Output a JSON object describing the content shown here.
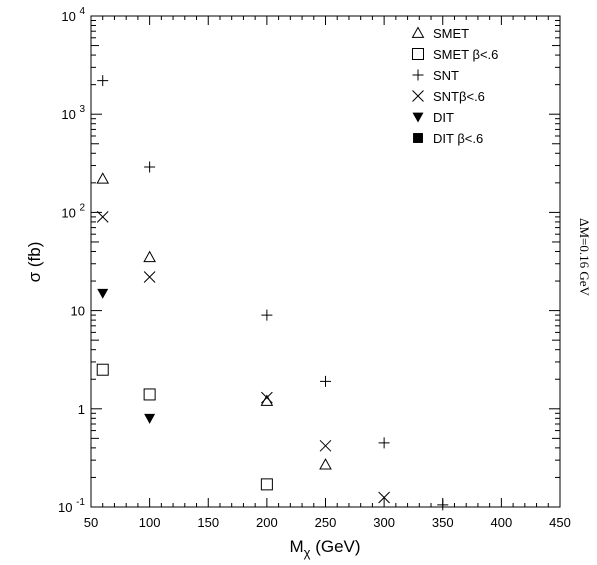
{
  "chart_data": {
    "type": "scatter",
    "title": "",
    "xlabel": "M",
    "xlabel_sub": "χ",
    "xlabel_unit": " (GeV)",
    "ylabel": "σ (fb)",
    "side_annotation": "ΔM=0.16 GeV",
    "xlim": [
      50,
      450
    ],
    "ylim": [
      0.1,
      10000
    ],
    "yscale": "log",
    "x_ticks": [
      50,
      100,
      150,
      200,
      250,
      300,
      350,
      400,
      450
    ],
    "x_tick_labels": [
      "50",
      "100",
      "150",
      "200",
      "250",
      "300",
      "350",
      "400",
      "450"
    ],
    "y_ticks": [
      {
        "value": 10000,
        "base": "10",
        "exp": "4"
      },
      {
        "value": 1000,
        "base": "10",
        "exp": "3"
      },
      {
        "value": 100,
        "base": "10",
        "exp": "2"
      },
      {
        "value": 10,
        "base": "10",
        "exp": ""
      },
      {
        "value": 1,
        "base": "1",
        "exp": ""
      },
      {
        "value": 0.1,
        "base": "10",
        "exp": "-1"
      }
    ],
    "grid": false,
    "legend_position": "top-right",
    "series": [
      {
        "name": "SMET",
        "marker": "triangle-open",
        "x": [
          60,
          100,
          200,
          250
        ],
        "y": [
          220,
          35,
          1.2,
          0.27
        ]
      },
      {
        "name": "SMET β<.6",
        "marker": "square-open",
        "x": [
          60,
          100,
          200
        ],
        "y": [
          2.5,
          1.4,
          0.17
        ]
      },
      {
        "name": "SNT",
        "marker": "plus",
        "x": [
          60,
          100,
          200,
          250,
          300,
          350
        ],
        "y": [
          2200,
          290,
          9,
          1.9,
          0.45,
          0.105
        ]
      },
      {
        "name": "SNTβ<.6",
        "marker": "cross",
        "x": [
          60,
          100,
          200,
          250,
          300
        ],
        "y": [
          90,
          22,
          1.3,
          0.42,
          0.125
        ]
      },
      {
        "name": "DIT",
        "marker": "triangle-down-filled",
        "x": [
          60,
          100
        ],
        "y": [
          15,
          0.8
        ]
      },
      {
        "name": "DIT β<.6",
        "marker": "square-filled",
        "x": [],
        "y": []
      }
    ]
  }
}
